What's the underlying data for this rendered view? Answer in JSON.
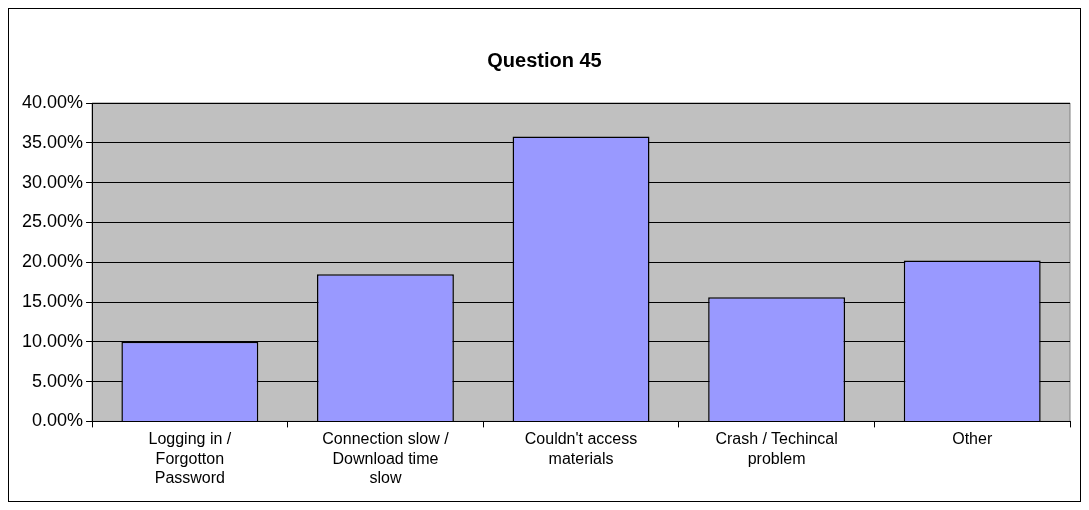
{
  "chart_data": {
    "type": "bar",
    "title": "Question 45",
    "categories": [
      "Logging in / Forgotton Password",
      "Connection slow / Download time slow",
      "Couldn't access materials",
      "Crash / Techincal problem",
      "Other"
    ],
    "values": [
      10,
      18.5,
      35.8,
      15.6,
      20.2
    ],
    "color": "#9999ff",
    "ylim": [
      0,
      40
    ],
    "yticks": [
      {
        "value": 0,
        "label": "0.00%"
      },
      {
        "value": 5,
        "label": "5.00%"
      },
      {
        "value": 10,
        "label": "10.00%"
      },
      {
        "value": 15,
        "label": "15.00%"
      },
      {
        "value": 20,
        "label": "20.00%"
      },
      {
        "value": 25,
        "label": "25.00%"
      },
      {
        "value": 30,
        "label": "30.00%"
      },
      {
        "value": 35,
        "label": "35.00%"
      },
      {
        "value": 40,
        "label": "40.00%"
      }
    ],
    "grid": "y",
    "legend": false
  }
}
